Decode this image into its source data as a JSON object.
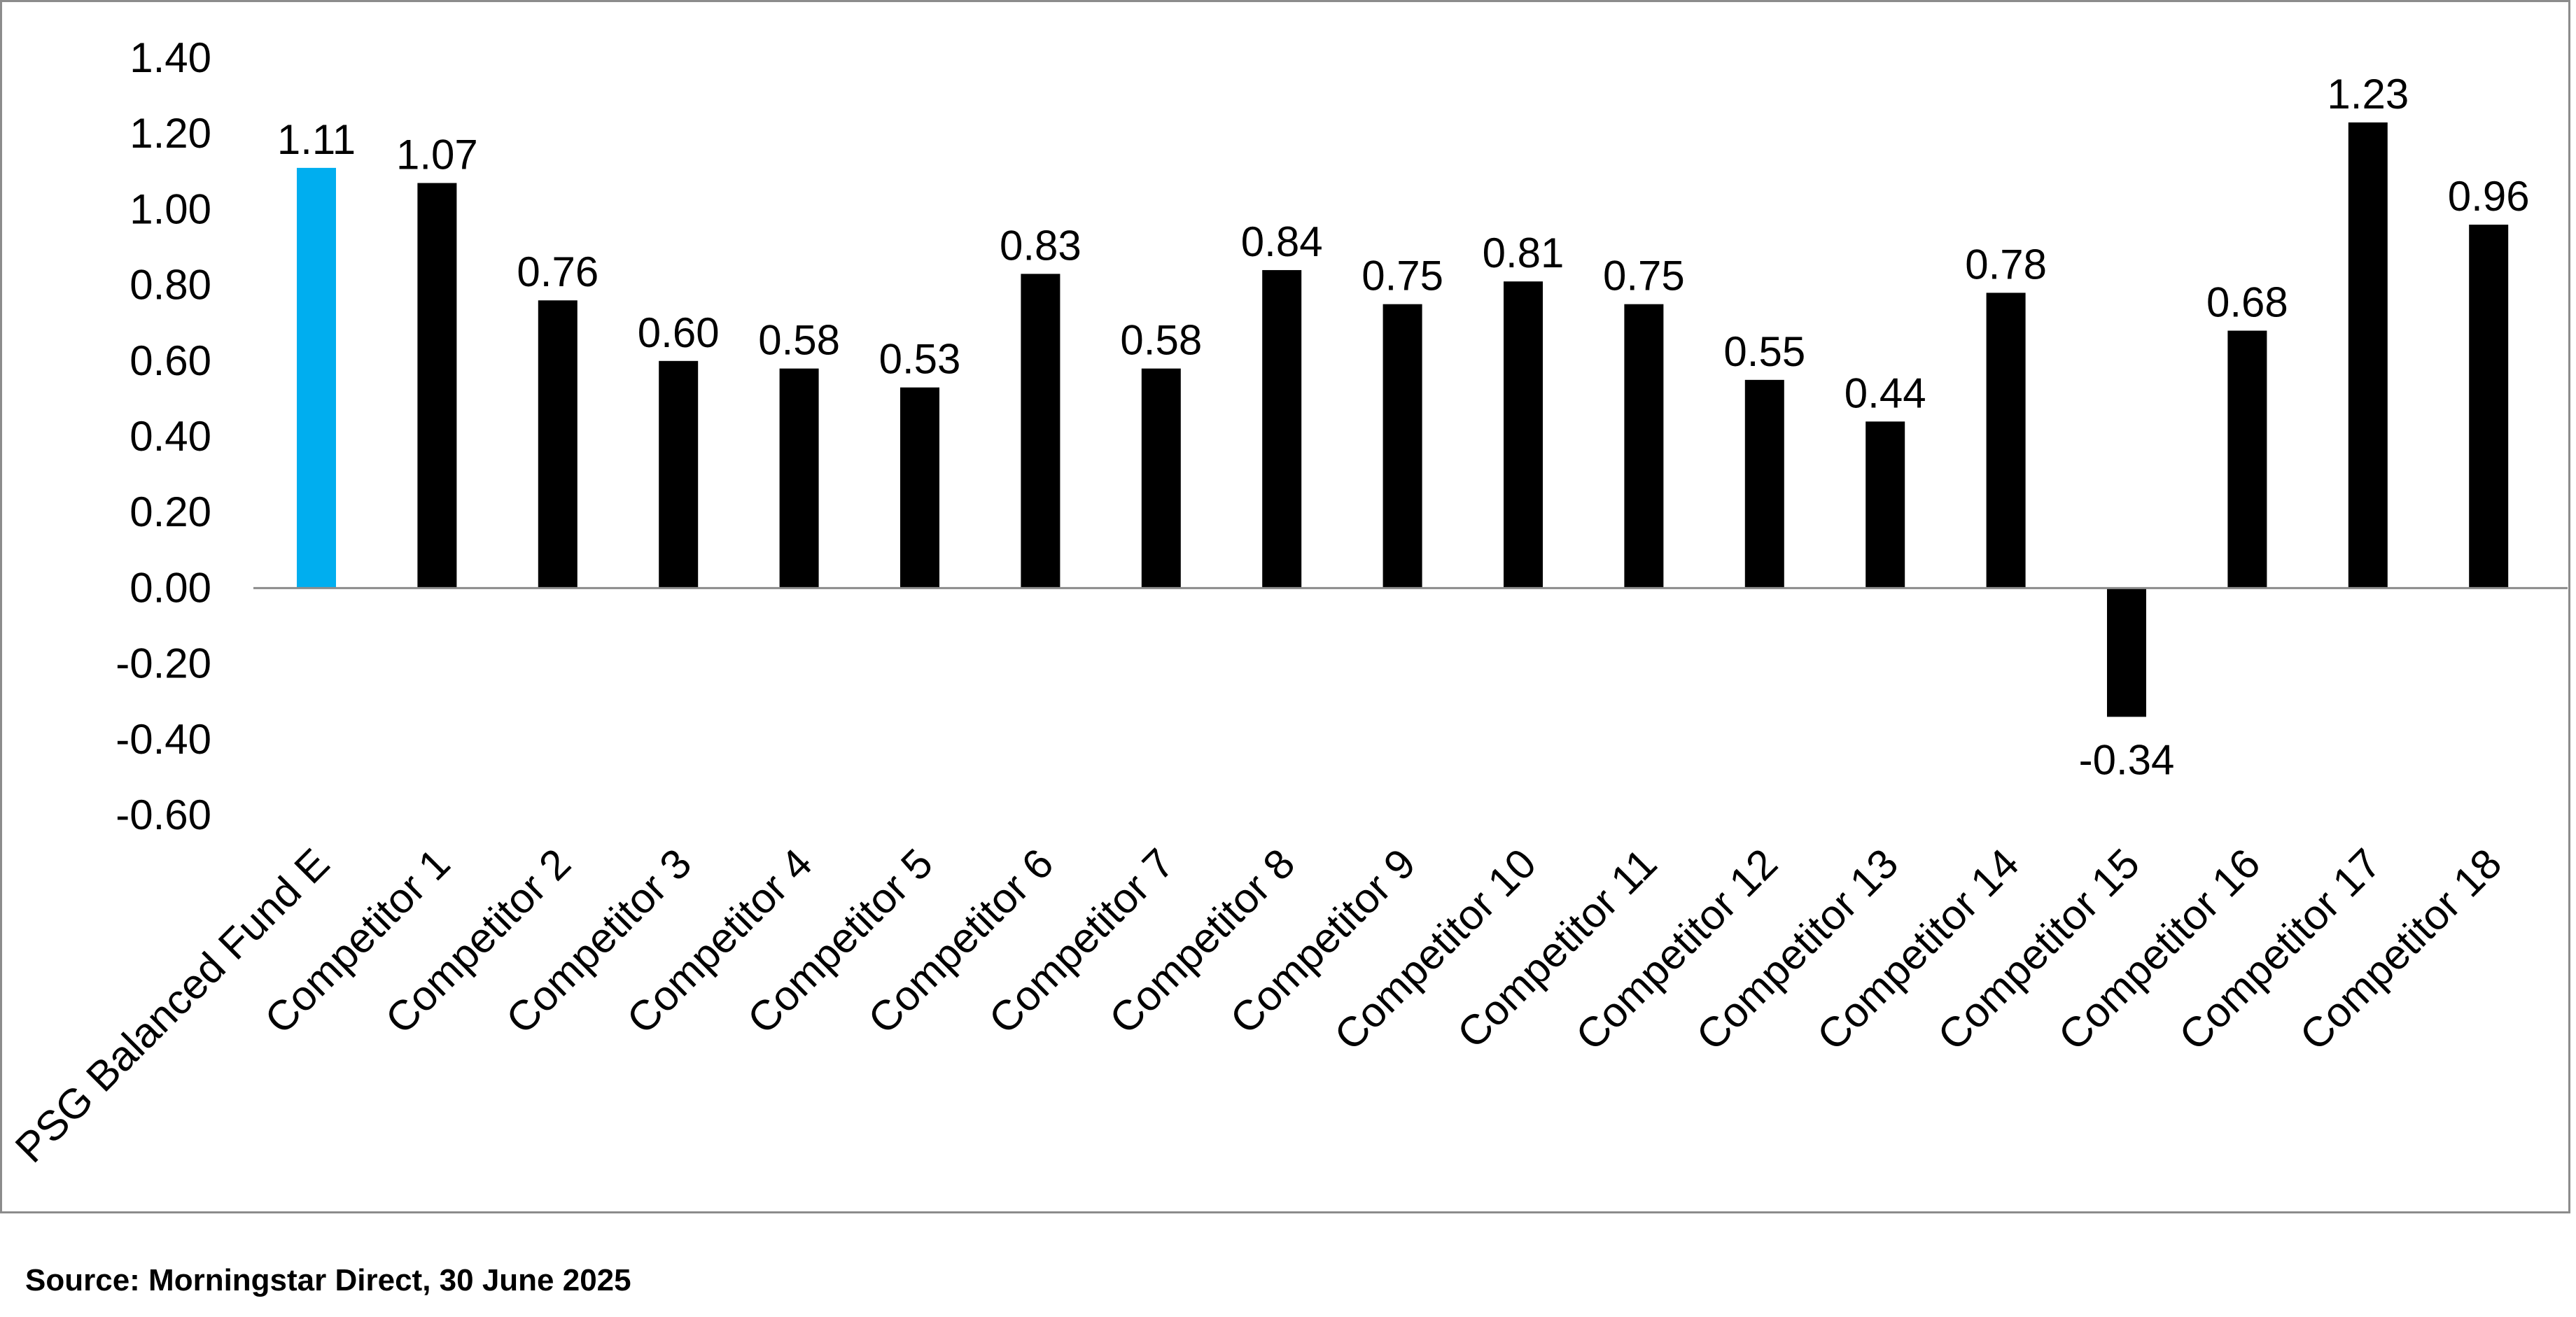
{
  "source": "Source: Morningstar Direct, 30 June 2025",
  "colors": {
    "highlight": "#00aeef",
    "bar": "#000000",
    "axis": "#8c8c8c",
    "frame": "#8c8c8c"
  },
  "chart_data": {
    "type": "bar",
    "title": "",
    "xlabel": "",
    "ylabel": "",
    "ylim": [
      -0.6,
      1.4
    ],
    "yticks": [
      "1.40",
      "1.20",
      "1.00",
      "0.80",
      "0.60",
      "0.40",
      "0.20",
      "0.00",
      "-0.20",
      "-0.40",
      "-0.60"
    ],
    "grid": false,
    "legend": "none",
    "categories": [
      "PSG Balanced Fund E",
      "Competitor 1",
      "Competitor 2",
      "Competitor 3",
      "Competitor 4",
      "Competitor 5",
      "Competitor 6",
      "Competitor 7",
      "Competitor 8",
      "Competitor 9",
      "Competitor 10",
      "Competitor 11",
      "Competitor 12",
      "Competitor 13",
      "Competitor 14",
      "Competitor 15",
      "Competitor 16",
      "Competitor 17",
      "Competitor 18"
    ],
    "values": [
      1.11,
      1.07,
      0.76,
      0.6,
      0.58,
      0.53,
      0.83,
      0.58,
      0.84,
      0.75,
      0.81,
      0.75,
      0.55,
      0.44,
      0.78,
      -0.34,
      0.68,
      1.23,
      0.96
    ],
    "value_labels": [
      "1.11",
      "1.07",
      "0.76",
      "0.60",
      "0.58",
      "0.53",
      "0.83",
      "0.58",
      "0.84",
      "0.75",
      "0.81",
      "0.75",
      "0.55",
      "0.44",
      "0.78",
      "-0.34",
      "0.68",
      "1.23",
      "0.96"
    ],
    "highlight_index": 0
  }
}
